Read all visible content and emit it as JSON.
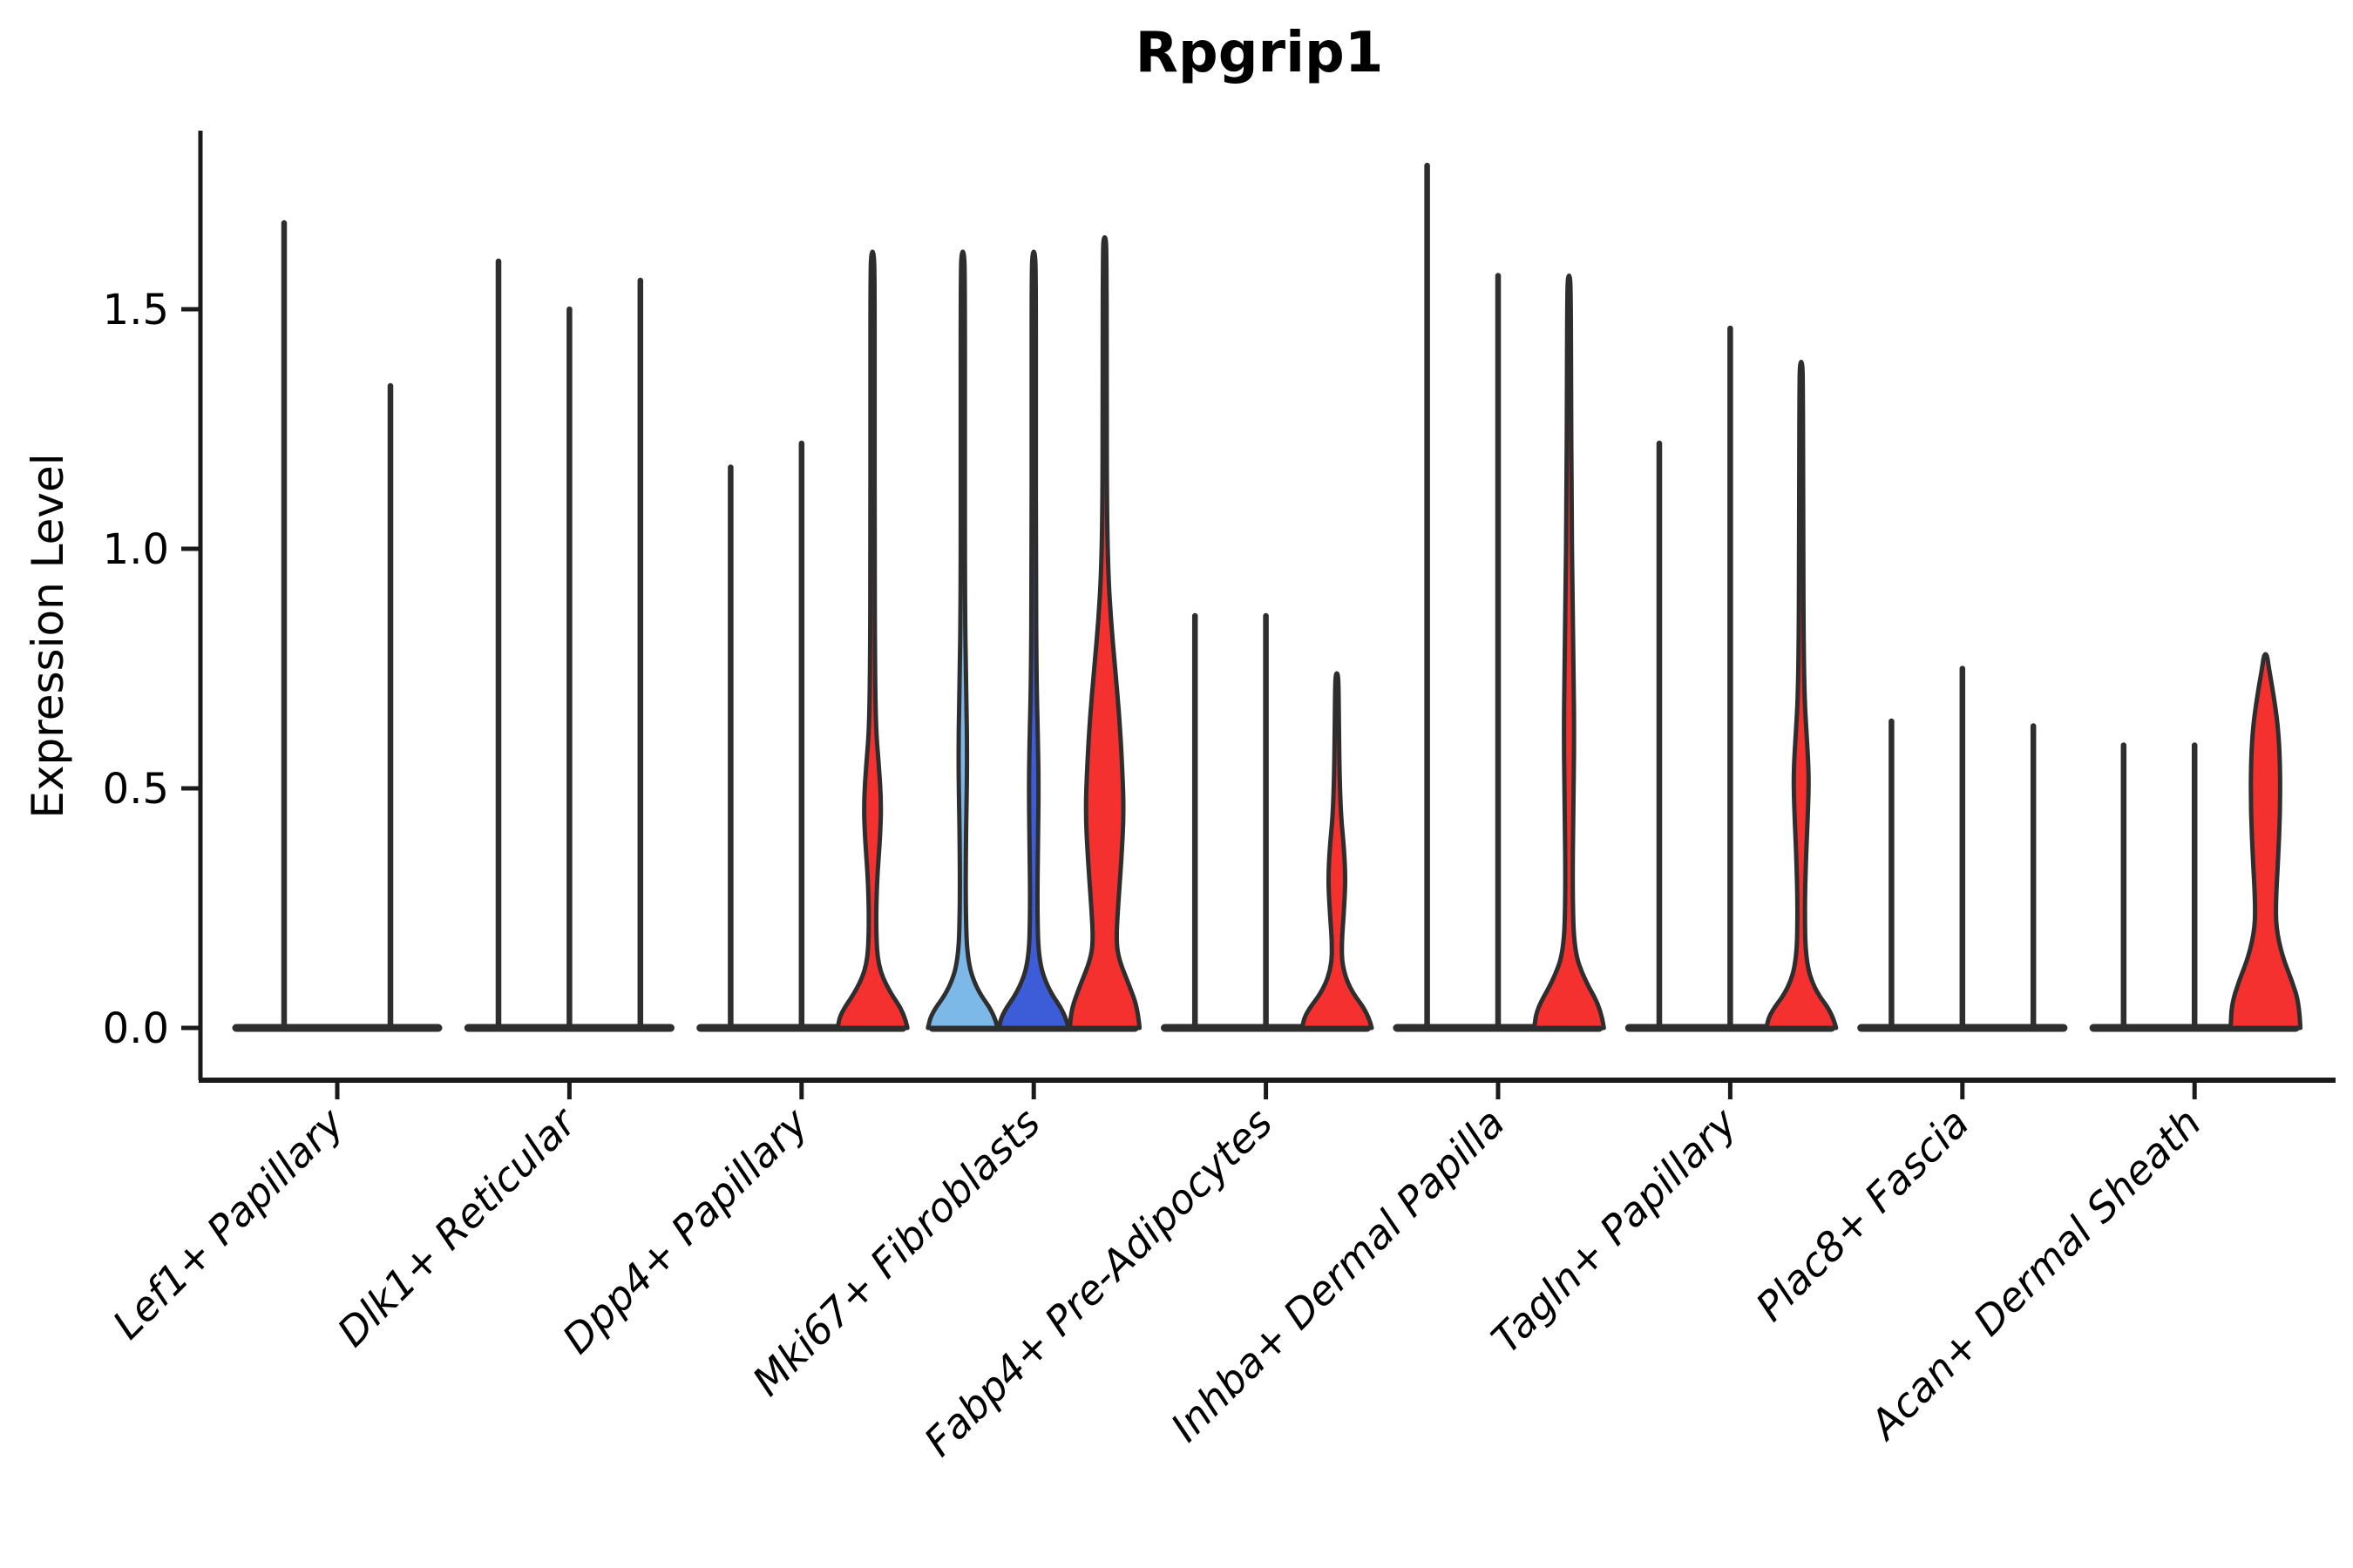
{
  "title": "Rpgrip1",
  "y_axis": {
    "label": "Expression Level"
  },
  "palette": {
    "red": "#f5312f",
    "light_blue": "#7db9e8",
    "dark_blue": "#3d5cd7",
    "outline": "#2e2e2e",
    "axis": "#1a1a1a",
    "text": "#000000",
    "background": "#ffffff"
  },
  "chart_data": {
    "type": "violin",
    "title": "Rpgrip1",
    "xlabel": "",
    "ylabel": "Expression Level",
    "ylim": [
      0,
      1.87
    ],
    "yticks": [
      0,
      0.5,
      1.0,
      1.5
    ],
    "ytick_labels": [
      "0.0",
      "0.5",
      "1.0",
      "1.5"
    ],
    "grid": "off",
    "legend": "none",
    "categories": [
      "Lef1+ Papillary",
      "Dlk1+ Reticular",
      "Dpp4+ Papillary",
      "Mki67+ Fibroblasts",
      "Fabp4+ Pre-Adipocytes",
      "Inhba+ Dermal Papilla",
      "Tagln+ Papillary",
      "Plac8+ Fascia",
      "Acan+ Dermal Sheath"
    ],
    "groups": [
      {
        "category": "Lef1+ Papillary",
        "violins": [
          {
            "fill": "none",
            "max": 1.68
          },
          {
            "fill": "none",
            "max": 1.34
          }
        ]
      },
      {
        "category": "Dlk1+ Reticular",
        "violins": [
          {
            "fill": "none",
            "max": 1.6
          },
          {
            "fill": "none",
            "max": 1.5
          },
          {
            "fill": "none",
            "max": 1.56
          }
        ]
      },
      {
        "category": "Dpp4+ Papillary",
        "violins": [
          {
            "fill": "none",
            "max": 1.17
          },
          {
            "fill": "none",
            "max": 1.22
          },
          {
            "fill": "red",
            "max": 1.62,
            "profile": [
              [
                0,
                1.0
              ],
              [
                0.03,
                0.92
              ],
              [
                0.08,
                0.45
              ],
              [
                0.13,
                0.16
              ],
              [
                0.2,
                0.1
              ],
              [
                0.3,
                0.12
              ],
              [
                0.4,
                0.22
              ],
              [
                0.47,
                0.25
              ],
              [
                0.55,
                0.18
              ],
              [
                0.62,
                0.1
              ],
              [
                0.75,
                0.07
              ],
              [
                1.0,
                0.06
              ],
              [
                1.3,
                0.06
              ],
              [
                1.58,
                0.06
              ],
              [
                1.62,
                0.03
              ]
            ]
          }
        ]
      },
      {
        "category": "Mki67+ Fibroblasts",
        "violins": [
          {
            "fill": "light_blue",
            "max": 1.62,
            "profile": [
              [
                0,
                1.0
              ],
              [
                0.03,
                0.9
              ],
              [
                0.08,
                0.4
              ],
              [
                0.14,
                0.13
              ],
              [
                0.25,
                0.08
              ],
              [
                0.4,
                0.09
              ],
              [
                0.52,
                0.12
              ],
              [
                0.62,
                0.12
              ],
              [
                0.72,
                0.09
              ],
              [
                0.9,
                0.06
              ],
              [
                1.2,
                0.06
              ],
              [
                1.58,
                0.06
              ],
              [
                1.62,
                0.03
              ]
            ]
          },
          {
            "fill": "dark_blue",
            "max": 1.62,
            "profile": [
              [
                0,
                1.0
              ],
              [
                0.03,
                0.9
              ],
              [
                0.08,
                0.42
              ],
              [
                0.14,
                0.14
              ],
              [
                0.25,
                0.1
              ],
              [
                0.38,
                0.12
              ],
              [
                0.5,
                0.14
              ],
              [
                0.6,
                0.12
              ],
              [
                0.72,
                0.08
              ],
              [
                0.95,
                0.06
              ],
              [
                1.3,
                0.06
              ],
              [
                1.58,
                0.06
              ],
              [
                1.62,
                0.03
              ]
            ]
          },
          {
            "fill": "red",
            "max": 1.65,
            "profile": [
              [
                0,
                1.0
              ],
              [
                0.04,
                0.95
              ],
              [
                0.09,
                0.7
              ],
              [
                0.14,
                0.42
              ],
              [
                0.18,
                0.33
              ],
              [
                0.25,
                0.38
              ],
              [
                0.35,
                0.48
              ],
              [
                0.45,
                0.55
              ],
              [
                0.55,
                0.5
              ],
              [
                0.65,
                0.42
              ],
              [
                0.75,
                0.3
              ],
              [
                0.85,
                0.18
              ],
              [
                0.95,
                0.1
              ],
              [
                1.1,
                0.06
              ],
              [
                1.4,
                0.06
              ],
              [
                1.62,
                0.05
              ],
              [
                1.65,
                0.03
              ]
            ]
          }
        ]
      },
      {
        "category": "Fabp4+ Pre-Adipocytes",
        "violins": [
          {
            "fill": "none",
            "max": 0.86
          },
          {
            "fill": "none",
            "max": 0.86
          },
          {
            "fill": "red",
            "max": 0.74,
            "profile": [
              [
                0,
                1.0
              ],
              [
                0.03,
                0.9
              ],
              [
                0.08,
                0.38
              ],
              [
                0.13,
                0.15
              ],
              [
                0.18,
                0.14
              ],
              [
                0.24,
                0.2
              ],
              [
                0.31,
                0.25
              ],
              [
                0.38,
                0.2
              ],
              [
                0.44,
                0.12
              ],
              [
                0.52,
                0.08
              ],
              [
                0.62,
                0.06
              ],
              [
                0.71,
                0.05
              ],
              [
                0.74,
                0.03
              ]
            ]
          }
        ]
      },
      {
        "category": "Inhba+ Dermal Papilla",
        "violins": [
          {
            "fill": "none",
            "max": 1.8
          },
          {
            "fill": "none",
            "max": 1.57
          },
          {
            "fill": "red",
            "max": 1.57,
            "profile": [
              [
                0,
                1.0
              ],
              [
                0.04,
                0.92
              ],
              [
                0.1,
                0.45
              ],
              [
                0.16,
                0.15
              ],
              [
                0.28,
                0.1
              ],
              [
                0.45,
                0.12
              ],
              [
                0.6,
                0.15
              ],
              [
                0.75,
                0.13
              ],
              [
                0.9,
                0.1
              ],
              [
                1.1,
                0.07
              ],
              [
                1.35,
                0.06
              ],
              [
                1.53,
                0.05
              ],
              [
                1.57,
                0.03
              ]
            ]
          }
        ]
      },
      {
        "category": "Tagln+ Papillary",
        "violins": [
          {
            "fill": "none",
            "max": 1.22
          },
          {
            "fill": "none",
            "max": 1.46
          },
          {
            "fill": "red",
            "max": 1.39,
            "profile": [
              [
                0,
                1.0
              ],
              [
                0.03,
                0.9
              ],
              [
                0.08,
                0.38
              ],
              [
                0.14,
                0.13
              ],
              [
                0.25,
                0.1
              ],
              [
                0.36,
                0.14
              ],
              [
                0.46,
                0.2
              ],
              [
                0.53,
                0.22
              ],
              [
                0.61,
                0.16
              ],
              [
                0.68,
                0.1
              ],
              [
                0.8,
                0.07
              ],
              [
                1.0,
                0.06
              ],
              [
                1.35,
                0.05
              ],
              [
                1.39,
                0.03
              ]
            ]
          }
        ]
      },
      {
        "category": "Plac8+ Fascia",
        "violins": [
          {
            "fill": "none",
            "max": 0.64
          },
          {
            "fill": "none",
            "max": 0.75
          },
          {
            "fill": "none",
            "max": 0.63
          }
        ]
      },
      {
        "category": "Acan+ Dermal Sheath",
        "violins": [
          {
            "fill": "none",
            "max": 0.59
          },
          {
            "fill": "none",
            "max": 0.59
          },
          {
            "fill": "red",
            "max": 0.78,
            "profile": [
              [
                0,
                1.0
              ],
              [
                0.05,
                0.97
              ],
              [
                0.1,
                0.75
              ],
              [
                0.15,
                0.48
              ],
              [
                0.21,
                0.3
              ],
              [
                0.27,
                0.3
              ],
              [
                0.35,
                0.36
              ],
              [
                0.45,
                0.42
              ],
              [
                0.55,
                0.42
              ],
              [
                0.63,
                0.36
              ],
              [
                0.7,
                0.22
              ],
              [
                0.75,
                0.1
              ],
              [
                0.78,
                0.04
              ]
            ]
          }
        ]
      }
    ]
  }
}
